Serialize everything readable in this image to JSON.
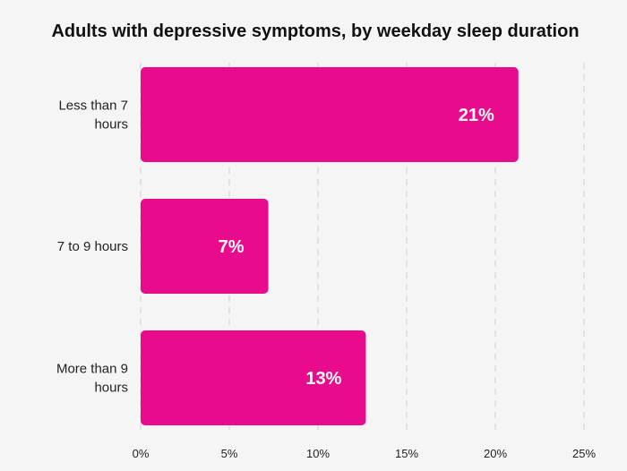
{
  "chart_data": {
    "type": "bar",
    "orientation": "horizontal",
    "title": "Adults with depressive symptoms, by weekday sleep duration",
    "categories": [
      [
        "Less than 7",
        "hours"
      ],
      [
        "7 to 9 hours"
      ],
      [
        "More than 9",
        "hours"
      ]
    ],
    "values": [
      21.3,
      7.2,
      12.7
    ],
    "data_labels": [
      "21%",
      "7%",
      "13%"
    ],
    "x_ticks": [
      "0%",
      "5%",
      "10%",
      "15%",
      "20%",
      "25%"
    ],
    "xlim": [
      0,
      25
    ],
    "xlabel": "",
    "ylabel": "",
    "grid": "vertical-dashed",
    "bar_color": "#e80c8c",
    "background": "#f5f5f5"
  }
}
